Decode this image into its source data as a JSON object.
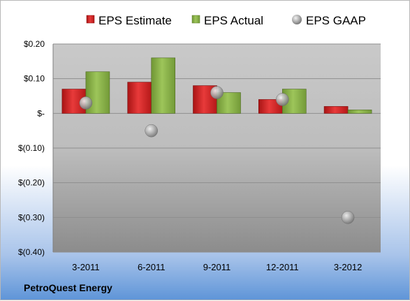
{
  "chart_data": {
    "type": "bar",
    "categories": [
      "3-2011",
      "6-2011",
      "9-2011",
      "12-2011",
      "3-2012"
    ],
    "series": [
      {
        "name": "EPS Estimate",
        "kind": "bar",
        "color": "#d42424",
        "values": [
          0.07,
          0.09,
          0.08,
          0.04,
          0.02
        ]
      },
      {
        "name": "EPS Actual",
        "kind": "bar",
        "color": "#8cb545",
        "values": [
          0.12,
          0.16,
          0.06,
          0.07,
          0.01
        ]
      },
      {
        "name": "EPS GAAP",
        "kind": "scatter",
        "color": "#a8a8a8",
        "values": [
          0.03,
          -0.05,
          0.06,
          0.04,
          -0.3
        ]
      }
    ],
    "yticks": [
      0.2,
      0.1,
      0,
      -0.1,
      -0.2,
      -0.3,
      -0.4
    ],
    "ytick_labels": [
      "$0.20",
      "$0.10",
      "$-",
      "$(0.10)",
      "$(0.20)",
      "$(0.30)",
      "$(0.40)"
    ],
    "ylim": [
      -0.4,
      0.2
    ],
    "grid": true,
    "legend_position": "top"
  },
  "footer": {
    "company": "PetroQuest Energy"
  }
}
